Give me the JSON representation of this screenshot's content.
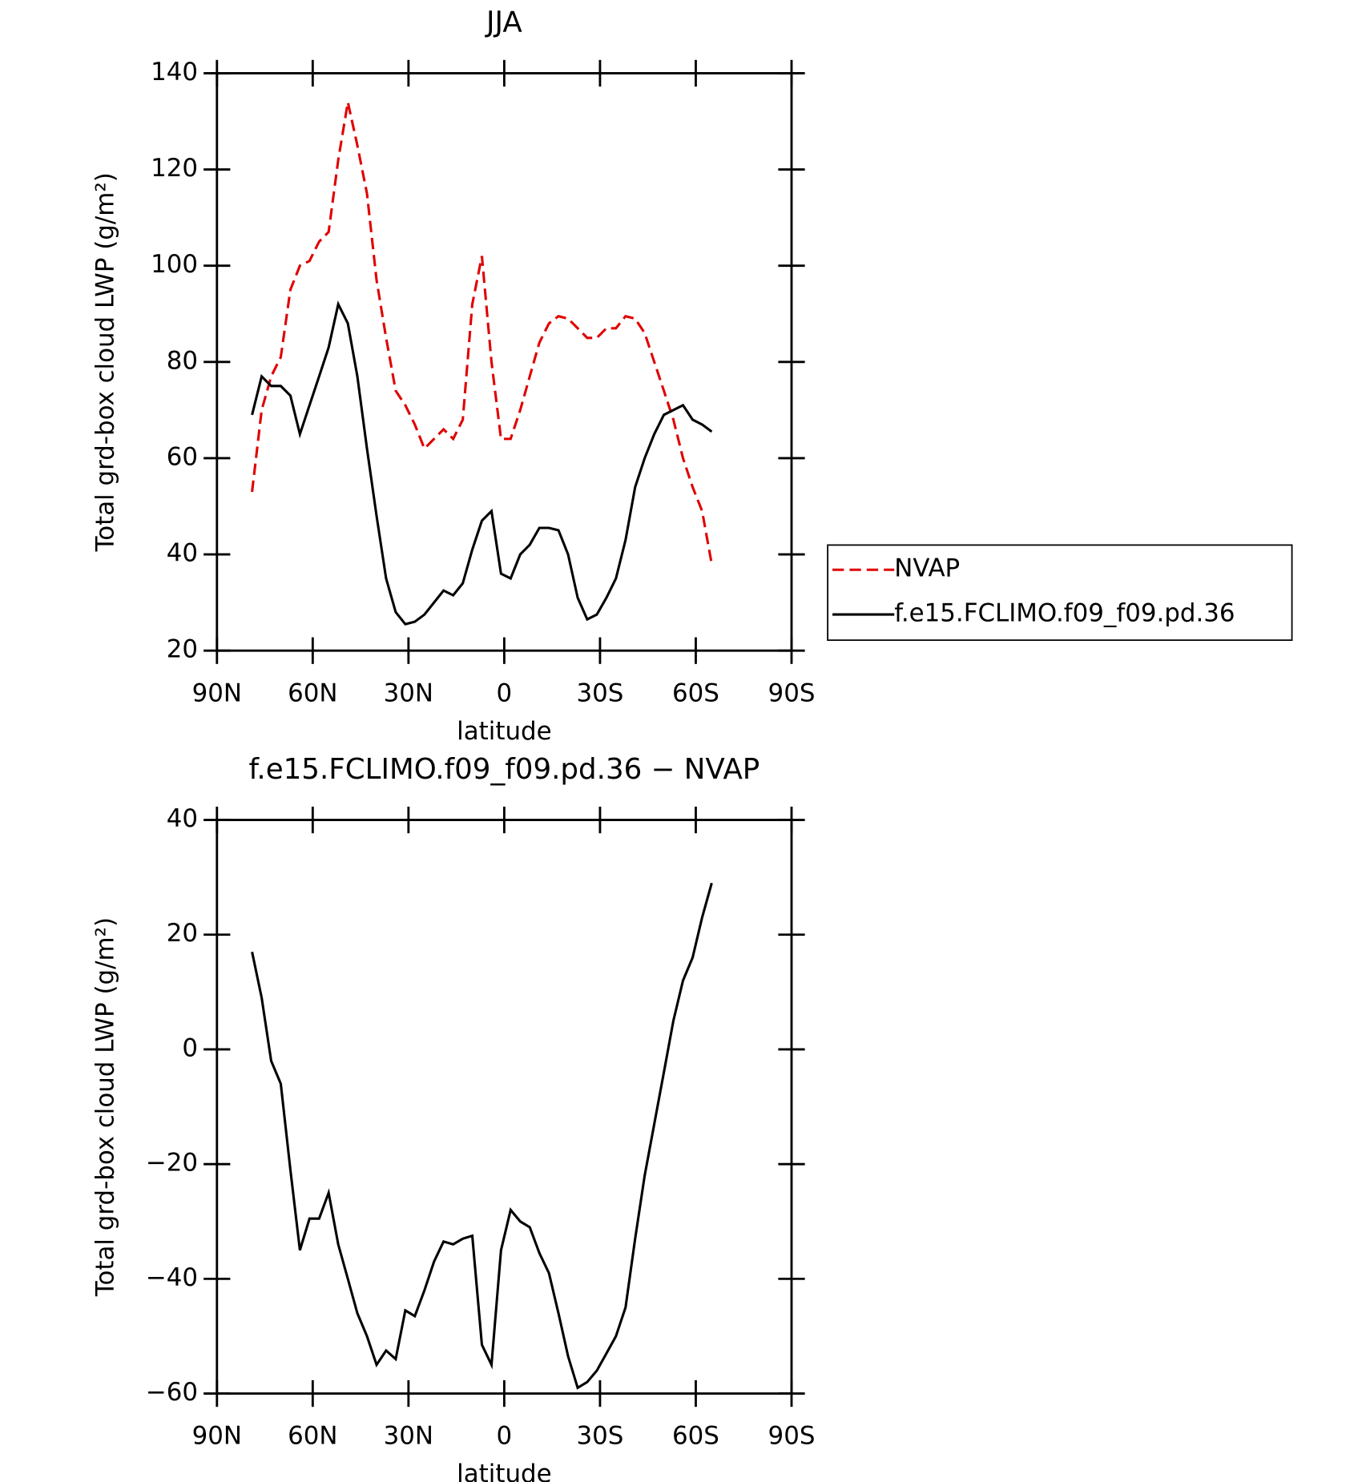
{
  "chart_data": [
    {
      "type": "line",
      "title": "JJA",
      "x_label": "latitude",
      "y_label": "Total grd-box cloud LWP (g/m²)",
      "x": [
        79,
        76,
        73,
        70,
        67,
        64,
        61,
        58,
        55,
        52,
        49,
        46,
        43,
        40,
        37,
        34,
        31,
        28,
        25,
        22,
        19,
        16,
        13,
        10,
        7,
        4,
        1,
        -2,
        -5,
        -8,
        -11,
        -14,
        -17,
        -20,
        -23,
        -26,
        -29,
        -32,
        -35,
        -38,
        -41,
        -44,
        -47,
        -50,
        -53,
        -56,
        -59,
        -62,
        -65
      ],
      "xlim": [
        90,
        -90
      ],
      "xticks": [
        {
          "value": 90,
          "label": "90N"
        },
        {
          "value": 60,
          "label": "60N"
        },
        {
          "value": 30,
          "label": "30N"
        },
        0,
        {
          "value": -30,
          "label": "30S"
        },
        {
          "value": -60,
          "label": "60S"
        },
        {
          "value": -90,
          "label": "90S"
        }
      ],
      "ylim": [
        20,
        140
      ],
      "yticks": [
        20,
        40,
        60,
        80,
        100,
        120,
        140
      ],
      "legend": "right",
      "series": [
        {
          "name": "NVAP",
          "color": "#e00000",
          "line_style": "dashed",
          "values": [
            53,
            70,
            77,
            81,
            95,
            100,
            101,
            105,
            107,
            122,
            134,
            125,
            115,
            97,
            85,
            74,
            71,
            67,
            62,
            64,
            66,
            64,
            68,
            92,
            102,
            80,
            64,
            64,
            70,
            77,
            84,
            88,
            89.5,
            89,
            87,
            85,
            85,
            87,
            87,
            89.5,
            89,
            86,
            80,
            74,
            68,
            60,
            54,
            49,
            38
          ]
        },
        {
          "name": "f.e15.FCLIMO.f09_f09.pd.36",
          "color": "#000000",
          "line_style": "solid",
          "values": [
            69,
            77,
            75,
            75,
            73,
            65,
            71,
            77,
            83,
            92,
            88,
            77,
            62,
            48,
            35,
            28,
            25.5,
            26,
            27.5,
            30,
            32.5,
            31.5,
            34,
            41,
            47,
            49,
            36,
            35,
            40,
            42,
            45.5,
            45.5,
            45,
            40,
            31,
            26.5,
            27.5,
            31,
            35,
            43,
            54,
            60,
            65,
            69,
            70,
            71,
            68,
            67,
            65.5
          ]
        }
      ]
    },
    {
      "type": "line",
      "title": "f.e15.FCLIMO.f09_f09.pd.36 − NVAP",
      "x_label": "latitude",
      "y_label": "Total grd-box cloud LWP (g/m²)",
      "x": [
        79,
        76,
        73,
        70,
        67,
        64,
        61,
        58,
        55,
        52,
        49,
        46,
        43,
        40,
        37,
        34,
        31,
        28,
        25,
        22,
        19,
        16,
        13,
        10,
        7,
        4,
        1,
        -2,
        -5,
        -8,
        -11,
        -14,
        -17,
        -20,
        -23,
        -26,
        -29,
        -32,
        -35,
        -38,
        -41,
        -44,
        -47,
        -50,
        -53,
        -56,
        -59,
        -62,
        -65
      ],
      "xlim": [
        90,
        -90
      ],
      "xticks": [
        {
          "value": 90,
          "label": "90N"
        },
        {
          "value": 60,
          "label": "60N"
        },
        {
          "value": 30,
          "label": "30N"
        },
        0,
        {
          "value": -30,
          "label": "30S"
        },
        {
          "value": -60,
          "label": "60S"
        },
        {
          "value": -90,
          "label": "90S"
        }
      ],
      "ylim": [
        -60,
        40
      ],
      "yticks": [
        {
          "value": -60,
          "label": "−60"
        },
        {
          "value": -40,
          "label": "−40"
        },
        {
          "value": -20,
          "label": "−20"
        },
        0,
        20,
        40
      ],
      "series": [
        {
          "color": "#000000",
          "line_style": "solid",
          "values": [
            17,
            9,
            -2,
            -6,
            -21,
            -35,
            -29.5,
            -29.5,
            -25,
            -34,
            -40,
            -46,
            -50,
            -55,
            -52.5,
            -54,
            -45.5,
            -46.5,
            -42,
            -37,
            -33.5,
            -34,
            -33,
            -32.5,
            -51.5,
            -55,
            -35,
            -28,
            -30,
            -31,
            -35.5,
            -39,
            -46,
            -53.5,
            -59,
            -58,
            -56,
            -53,
            -50,
            -45,
            -33,
            -22,
            -13,
            -4,
            5,
            12,
            16,
            23,
            29
          ]
        }
      ]
    }
  ]
}
